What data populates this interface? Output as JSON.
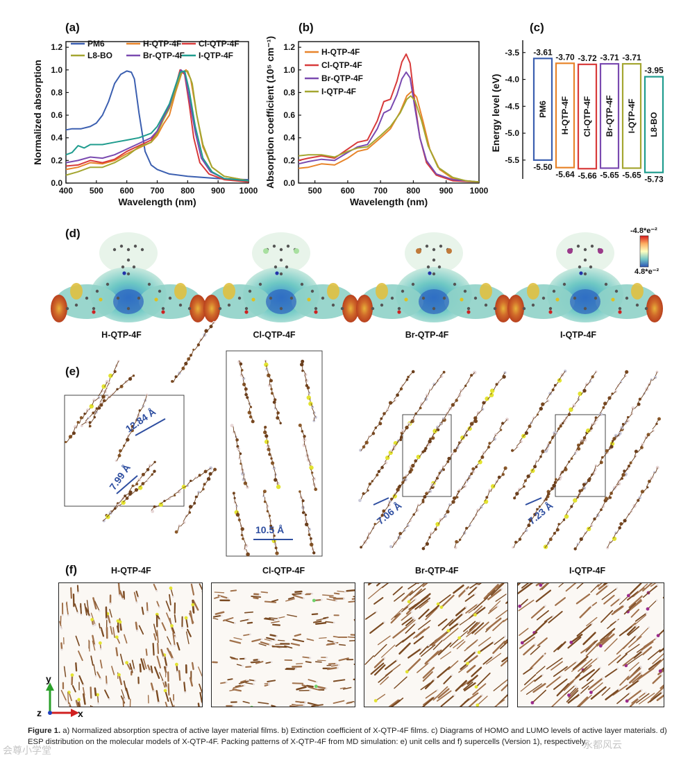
{
  "panels": {
    "a": "(a)",
    "b": "(b)",
    "c": "(c)",
    "d": "(d)",
    "e": "(e)",
    "f": "(f)"
  },
  "chart_a": {
    "type": "line",
    "xlabel": "Wavelength (nm)",
    "ylabel": "Normalized absorption",
    "xlim": [
      400,
      1000
    ],
    "ylim": [
      0.0,
      1.25
    ],
    "xticks": [
      "400",
      "500",
      "600",
      "700",
      "800",
      "900",
      "1000"
    ],
    "yticks": [
      "0.0",
      "0.2",
      "0.4",
      "0.6",
      "0.8",
      "1.0",
      "1.2"
    ],
    "legend": [
      "PM6",
      "H-QTP-4F",
      "Cl-QTP-4F",
      "L8-BO",
      "Br-QTP-4F",
      "I-QTP-4F"
    ],
    "series": [
      {
        "name": "PM6",
        "color": "#3b5fb0",
        "x": [
          400,
          420,
          450,
          480,
          500,
          520,
          540,
          560,
          580,
          600,
          615,
          625,
          640,
          660,
          680,
          700,
          740,
          800,
          900,
          1000
        ],
        "y": [
          0.47,
          0.48,
          0.48,
          0.5,
          0.53,
          0.6,
          0.72,
          0.88,
          0.96,
          0.99,
          0.98,
          0.92,
          0.62,
          0.28,
          0.16,
          0.12,
          0.08,
          0.06,
          0.04,
          0.03
        ]
      },
      {
        "name": "H-QTP-4F",
        "color": "#e8842a",
        "x": [
          400,
          440,
          480,
          520,
          560,
          600,
          640,
          680,
          700,
          720,
          740,
          760,
          780,
          795,
          810,
          830,
          850,
          880,
          920,
          1000
        ],
        "y": [
          0.12,
          0.14,
          0.18,
          0.17,
          0.2,
          0.26,
          0.31,
          0.36,
          0.42,
          0.52,
          0.6,
          0.8,
          0.97,
          1.0,
          0.92,
          0.6,
          0.32,
          0.14,
          0.06,
          0.02
        ]
      },
      {
        "name": "Cl-QTP-4F",
        "color": "#d83a3a",
        "x": [
          400,
          440,
          480,
          520,
          560,
          600,
          640,
          680,
          700,
          720,
          740,
          760,
          775,
          790,
          805,
          820,
          840,
          870,
          920,
          1000
        ],
        "y": [
          0.15,
          0.16,
          0.2,
          0.18,
          0.21,
          0.28,
          0.33,
          0.38,
          0.46,
          0.58,
          0.68,
          0.85,
          1.0,
          0.96,
          0.7,
          0.4,
          0.18,
          0.08,
          0.03,
          0.01
        ]
      },
      {
        "name": "L8-BO",
        "color": "#a4a630",
        "x": [
          400,
          440,
          480,
          520,
          560,
          600,
          640,
          680,
          700,
          720,
          740,
          760,
          780,
          800,
          815,
          830,
          850,
          880,
          920,
          1000
        ],
        "y": [
          0.07,
          0.1,
          0.14,
          0.14,
          0.18,
          0.24,
          0.32,
          0.36,
          0.44,
          0.56,
          0.66,
          0.82,
          0.98,
          0.99,
          0.88,
          0.6,
          0.34,
          0.14,
          0.06,
          0.02
        ]
      },
      {
        "name": "Br-QTP-4F",
        "color": "#7a4ab0",
        "x": [
          400,
          440,
          480,
          520,
          560,
          600,
          640,
          680,
          700,
          720,
          740,
          760,
          778,
          790,
          805,
          825,
          845,
          875,
          920,
          1000
        ],
        "y": [
          0.18,
          0.2,
          0.23,
          0.22,
          0.25,
          0.3,
          0.35,
          0.4,
          0.46,
          0.58,
          0.68,
          0.86,
          1.0,
          0.97,
          0.75,
          0.45,
          0.22,
          0.1,
          0.04,
          0.02
        ]
      },
      {
        "name": "I-QTP-4F",
        "color": "#1f9c8e",
        "x": [
          400,
          420,
          440,
          460,
          480,
          500,
          520,
          560,
          600,
          640,
          680,
          700,
          720,
          740,
          760,
          775,
          790,
          805,
          825,
          850,
          880,
          920,
          1000
        ],
        "y": [
          0.25,
          0.27,
          0.33,
          0.31,
          0.34,
          0.34,
          0.34,
          0.36,
          0.38,
          0.4,
          0.44,
          0.5,
          0.6,
          0.7,
          0.86,
          0.98,
          0.99,
          0.82,
          0.5,
          0.22,
          0.1,
          0.04,
          0.02
        ]
      }
    ]
  },
  "chart_b": {
    "type": "line",
    "xlabel": "Wavelength (nm)",
    "ylabel": "Absorption coefficient (10⁵ cm⁻¹)",
    "xlim": [
      450,
      1000
    ],
    "ylim": [
      0.0,
      1.25
    ],
    "xticks": [
      "500",
      "600",
      "700",
      "800",
      "900",
      "1000"
    ],
    "yticks": [
      "0.0",
      "0.2",
      "0.4",
      "0.6",
      "0.8",
      "1.0",
      "1.2"
    ],
    "legend": [
      "H-QTP-4F",
      "Cl-QTP-4F",
      "Br-QTP-4F",
      "I-QTP-4F"
    ],
    "series": [
      {
        "name": "H-QTP-4F",
        "color": "#e8842a",
        "x": [
          450,
          480,
          520,
          560,
          600,
          630,
          660,
          700,
          730,
          760,
          780,
          795,
          810,
          830,
          850,
          880,
          920,
          960,
          1000
        ],
        "y": [
          0.13,
          0.14,
          0.17,
          0.16,
          0.22,
          0.28,
          0.3,
          0.4,
          0.48,
          0.63,
          0.77,
          0.81,
          0.76,
          0.54,
          0.3,
          0.12,
          0.04,
          0.02,
          0.01
        ]
      },
      {
        "name": "Cl-QTP-4F",
        "color": "#d83a3a",
        "x": [
          450,
          480,
          520,
          560,
          600,
          630,
          660,
          690,
          710,
          730,
          750,
          765,
          778,
          790,
          805,
          820,
          840,
          870,
          920,
          1000
        ],
        "y": [
          0.2,
          0.22,
          0.24,
          0.22,
          0.3,
          0.36,
          0.38,
          0.55,
          0.72,
          0.74,
          0.9,
          1.07,
          1.14,
          1.06,
          0.7,
          0.4,
          0.18,
          0.07,
          0.02,
          0.01
        ]
      },
      {
        "name": "Br-QTP-4F",
        "color": "#7a4ab0",
        "x": [
          450,
          480,
          520,
          560,
          600,
          630,
          660,
          690,
          710,
          730,
          750,
          765,
          778,
          790,
          805,
          820,
          840,
          870,
          920,
          1000
        ],
        "y": [
          0.17,
          0.19,
          0.21,
          0.2,
          0.27,
          0.32,
          0.34,
          0.48,
          0.62,
          0.65,
          0.78,
          0.92,
          0.98,
          0.93,
          0.66,
          0.4,
          0.2,
          0.08,
          0.03,
          0.01
        ]
      },
      {
        "name": "I-QTP-4F",
        "color": "#a4a630",
        "x": [
          450,
          480,
          520,
          560,
          600,
          630,
          660,
          700,
          730,
          760,
          780,
          792,
          805,
          825,
          845,
          875,
          920,
          960,
          1000
        ],
        "y": [
          0.24,
          0.25,
          0.25,
          0.23,
          0.28,
          0.31,
          0.32,
          0.42,
          0.5,
          0.62,
          0.74,
          0.77,
          0.73,
          0.55,
          0.33,
          0.14,
          0.05,
          0.02,
          0.01
        ]
      }
    ]
  },
  "chart_c": {
    "type": "bar",
    "ylabel": "Energy level (eV)",
    "ylim": [
      -5.85,
      -3.4
    ],
    "yticks": [
      "-3.5",
      "-4.0",
      "-4.5",
      "-5.0",
      "-5.5"
    ],
    "materials": [
      {
        "name": "PM6",
        "lumo": -3.61,
        "homo": -5.5,
        "lumo_label": "-3.61",
        "homo_label": "-5.50",
        "color": "#3b5fb0"
      },
      {
        "name": "H-QTP-4F",
        "lumo": -3.7,
        "homo": -5.64,
        "lumo_label": "-3.70",
        "homo_label": "-5.64",
        "color": "#e8842a"
      },
      {
        "name": "Cl-QTP-4F",
        "lumo": -3.72,
        "homo": -5.66,
        "lumo_label": "-3.72",
        "homo_label": "-5.66",
        "color": "#d83a3a"
      },
      {
        "name": "Br-QTP-4F",
        "lumo": -3.71,
        "homo": -5.65,
        "lumo_label": "-3.71",
        "homo_label": "-5.65",
        "color": "#7a4ab0"
      },
      {
        "name": "I-QTP-4F",
        "lumo": -3.71,
        "homo": -5.65,
        "lumo_label": "-3.71",
        "homo_label": "-5.65",
        "color": "#a4a630"
      },
      {
        "name": "L8-BO",
        "lumo": -3.95,
        "homo": -5.73,
        "lumo_label": "-3.95",
        "homo_label": "-5.73",
        "color": "#1f9c8e"
      }
    ]
  },
  "esp": {
    "scale_top": "-4.8*e⁻²",
    "scale_bottom": "4.8*e⁻²",
    "molecules": [
      "H-QTP-4F",
      "Cl-QTP-4F",
      "Br-QTP-4F",
      "I-QTP-4F"
    ]
  },
  "cells": {
    "distances": [
      "12.84 Å",
      "7.99 Å",
      "10.5 Å",
      "7.06 Å",
      "7.23 Å"
    ]
  },
  "supercells": {
    "labels": [
      "H-QTP-4F",
      "Cl-QTP-4F",
      "Br-QTP-4F",
      "I-QTP-4F"
    ],
    "axis_y": "y",
    "axis_z": "z",
    "axis_x": "x"
  },
  "caption": {
    "lead": "Figure 1.",
    "text": " a) Normalized absorption spectra of active layer material films. b) Extinction coefficient of X-QTP-4F films. c) Diagrams of HOMO and LUMO levels of active layer materials. d) ESP distribution on the molecular models of X-QTP-4F. Packing patterns of X-QTP-4F from MD simulation: e) unit cells and f) supercells (Version 1), respectively."
  },
  "watermarks": [
    "会尊小学堂",
    "永都风云"
  ]
}
